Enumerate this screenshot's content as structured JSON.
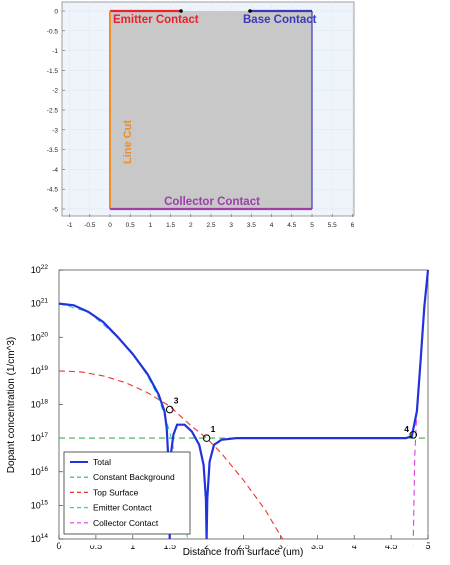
{
  "geometry_plot": {
    "x_ticks": [
      "-1",
      "-0.5",
      "0",
      "0.5",
      "1",
      "1.5",
      "2",
      "2.5",
      "3",
      "3.5",
      "4",
      "4.5",
      "5",
      "5.5",
      "6"
    ],
    "y_ticks": [
      "0",
      "-0.5",
      "-1",
      "-1.5",
      "-2",
      "-2.5",
      "-3",
      "-3.5",
      "-4",
      "-4.5",
      "-5"
    ],
    "labels": {
      "emitter": "Emitter Contact",
      "base": "Base Contact",
      "line_cut": "Line Cut",
      "collector": "Collector Contact"
    },
    "colors": {
      "emitter": "#e8212b",
      "base": "#3a3ab8",
      "line_cut": "#f08c2a",
      "collector": "#9b40a8",
      "domain_fill": "#c8c8c8",
      "background": "#eef4fa"
    }
  },
  "chart_data": {
    "type": "line",
    "xlabel": "Distance from surface (um)",
    "ylabel": "Dopant concentration (1/cm^3)",
    "xlim": [
      0,
      5
    ],
    "ylim_log10": [
      14,
      22
    ],
    "y_scale": "log",
    "x_ticks": [
      "0",
      "0.5",
      "1",
      "1.5",
      "2",
      "2.5",
      "3",
      "3.5",
      "4",
      "4.5",
      "5"
    ],
    "y_tick_exponents": [
      "14",
      "15",
      "16",
      "17",
      "18",
      "19",
      "20",
      "21",
      "22"
    ],
    "legend_position": "bottom-left",
    "series": [
      {
        "name": "Total",
        "color": "#2233dd",
        "x": [
          0,
          0.2,
          0.4,
          0.6,
          0.8,
          1.0,
          1.2,
          1.35,
          1.43,
          1.46,
          1.49,
          1.5,
          1.52,
          1.55,
          1.6,
          1.7,
          1.8,
          1.9,
          1.96,
          1.99,
          2.0,
          2.01,
          2.04,
          2.1,
          2.2,
          2.4,
          2.6,
          3.0,
          4.0,
          4.5,
          4.7,
          4.78,
          4.85,
          4.9,
          4.95,
          5.0
        ],
        "log10_y": [
          21.0,
          20.95,
          20.75,
          20.45,
          20.0,
          19.5,
          18.9,
          18.3,
          17.8,
          17.3,
          16.0,
          14.0,
          16.6,
          17.1,
          17.4,
          17.4,
          17.2,
          16.8,
          16.2,
          15.2,
          14.0,
          15.2,
          16.3,
          16.8,
          16.95,
          17.0,
          17.0,
          17.0,
          17.0,
          17.0,
          17.0,
          17.05,
          17.8,
          19.3,
          20.9,
          22.0
        ]
      },
      {
        "name": "Constant Background",
        "color": "#3cb24a",
        "x": [
          0,
          1,
          2,
          3,
          4,
          5
        ],
        "log10_y": [
          17,
          17,
          17,
          17,
          17,
          17
        ]
      },
      {
        "name": "Top Surface",
        "color": "#e8382e",
        "x": [
          0,
          0.3,
          0.6,
          0.9,
          1.2,
          1.5,
          1.8,
          2.0,
          2.2,
          2.5,
          2.8,
          3.0,
          3.1
        ],
        "log10_y": [
          19.0,
          18.97,
          18.85,
          18.65,
          18.35,
          17.95,
          17.35,
          17.0,
          16.55,
          15.75,
          14.85,
          14.1,
          13.8
        ]
      },
      {
        "name": "Emitter Contact",
        "color": "#2ad0d8",
        "x": [
          0,
          0.4,
          0.8,
          1.0,
          1.2,
          1.35,
          1.5,
          1.6,
          1.7,
          1.75
        ],
        "log10_y": [
          21.0,
          20.75,
          20.0,
          19.5,
          18.85,
          18.2,
          17.2,
          16.2,
          14.8,
          13.8
        ]
      },
      {
        "name": "Collector Contact",
        "color": "#e040e0",
        "x": [
          4.8,
          4.82,
          4.85,
          4.9,
          4.95,
          5.0
        ],
        "log10_y": [
          13.8,
          16.4,
          17.9,
          19.3,
          20.9,
          22.0
        ]
      }
    ],
    "annotations": [
      {
        "label": "1",
        "x": 2.0,
        "log10_y": 17.0,
        "color": "#000000"
      },
      {
        "label": "3",
        "x": 1.5,
        "log10_y": 17.85,
        "color": "#000000"
      },
      {
        "label": "4",
        "x": 4.8,
        "log10_y": 17.1,
        "color": "#000000"
      }
    ]
  }
}
